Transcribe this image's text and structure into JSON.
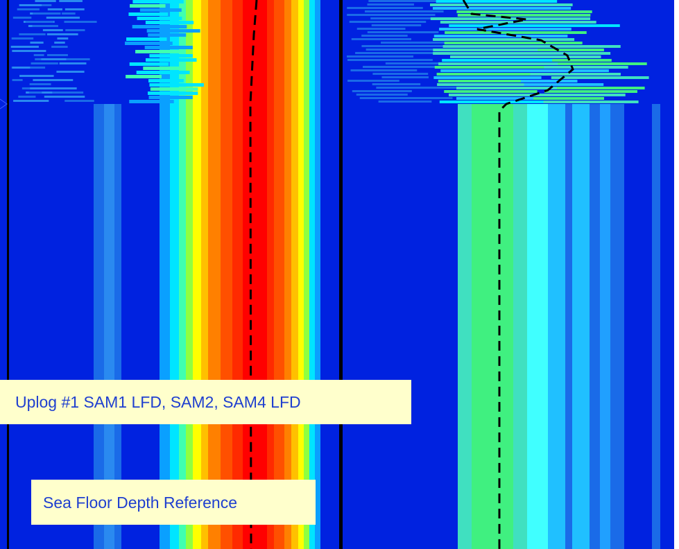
{
  "labels": {
    "caption": "Uplog #1 SAM1 LFD, SAM2, SAM4 LFD",
    "reference": "Sea Floor Depth Reference"
  }
}
